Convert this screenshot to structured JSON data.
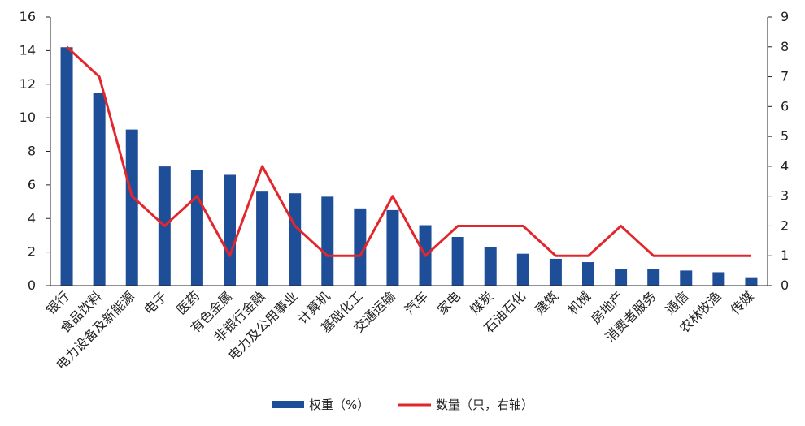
{
  "chart_data": {
    "type": "bar",
    "categories": [
      "银行",
      "食品饮料",
      "电力设备及新能源",
      "电子",
      "医药",
      "有色金属",
      "非银行金融",
      "电力及公用事业",
      "计算机",
      "基础化工",
      "交通运输",
      "汽车",
      "家电",
      "煤炭",
      "石油石化",
      "建筑",
      "机械",
      "房地产",
      "消费者服务",
      "通信",
      "农林牧渔",
      "传媒"
    ],
    "series": [
      {
        "name": "权重（%）",
        "type": "bar",
        "axis": "left",
        "color": "#1f4e98",
        "values": [
          14.2,
          11.5,
          9.3,
          7.1,
          6.9,
          6.6,
          5.6,
          5.5,
          5.3,
          4.6,
          4.5,
          3.6,
          2.9,
          2.3,
          1.9,
          1.6,
          1.4,
          1.0,
          1.0,
          0.9,
          0.8,
          0.5
        ]
      },
      {
        "name": "数量（只，右轴）",
        "type": "line",
        "axis": "right",
        "color": "#e3262b",
        "values": [
          8,
          7,
          3,
          2,
          3,
          1,
          4,
          2,
          1,
          1,
          3,
          1,
          2,
          2,
          2,
          1,
          1,
          2,
          1,
          1,
          1,
          1
        ]
      }
    ],
    "y_left": {
      "min": 0,
      "max": 16,
      "ticks": [
        "0",
        "2",
        "4",
        "6",
        "8",
        "10",
        "12",
        "14",
        "16"
      ]
    },
    "y_right": {
      "min": 0,
      "max": 9,
      "ticks": [
        "0",
        "1",
        "2",
        "3",
        "4",
        "5",
        "6",
        "7",
        "8",
        "9"
      ]
    },
    "legend_position": "bottom",
    "grid": false
  }
}
